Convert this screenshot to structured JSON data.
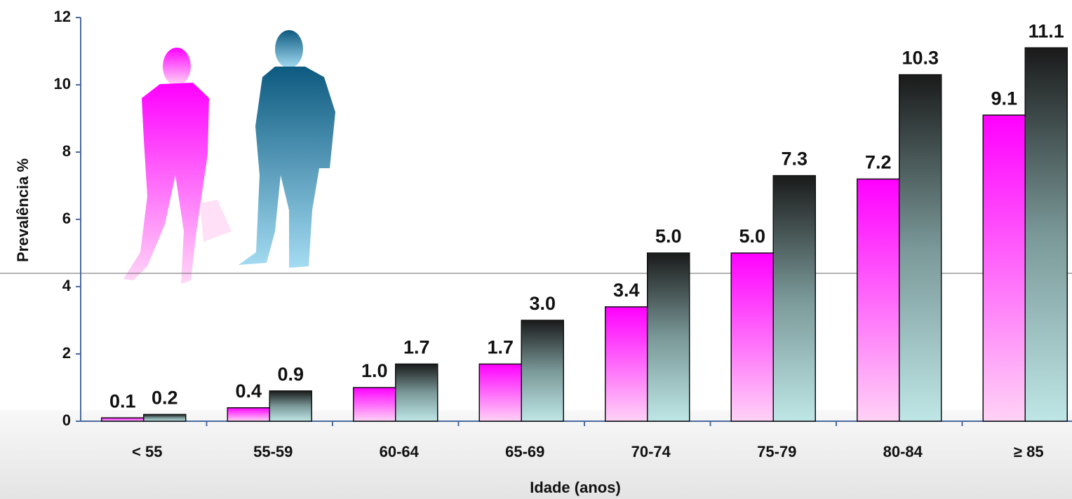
{
  "chart_data": {
    "type": "bar",
    "x_label": "Idade (anos)",
    "y_label": "Prevalência %",
    "categories": [
      "< 55",
      "55-59",
      "60-64",
      "65-69",
      "70-74",
      "75-79",
      "80-84",
      "≥ 85"
    ],
    "series": [
      {
        "color": "#ff00ff",
        "values": [
          0.1,
          0.4,
          1.0,
          1.7,
          3.4,
          5.0,
          7.2,
          9.1
        ],
        "value_labels": [
          "0.1",
          "0.4",
          "1.0",
          "1.7",
          "3.4",
          "5.0",
          "7.2",
          "9.1"
        ]
      },
      {
        "color": "#1a1a1a",
        "values": [
          0.2,
          0.9,
          1.7,
          3.0,
          5.0,
          7.3,
          10.3,
          11.1
        ],
        "value_labels": [
          "0.2",
          "0.9",
          "1.7",
          "3.0",
          "5.0",
          "7.3",
          "10.3",
          "11.1"
        ]
      }
    ],
    "ylim": [
      0,
      12
    ],
    "yticks": [
      0,
      2,
      4,
      6,
      8,
      10,
      12
    ]
  }
}
